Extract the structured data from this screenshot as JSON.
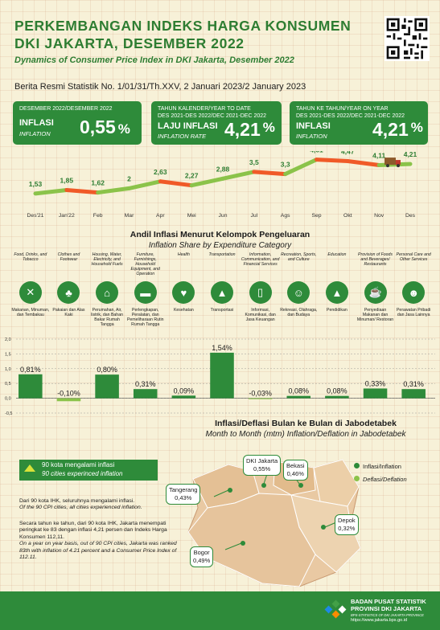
{
  "header": {
    "title_line1": "PERKEMBANGAN INDEKS HARGA KONSUMEN",
    "title_line2": "DKI JAKARTA, DESEMBER 2022",
    "subtitle": "Dynamics of Consumer Price Index in DKI Jakarta, Desember 2022",
    "brs": "Berita Resmi Statistik No. 1/01/31/Th.XXV, 2 Januari 2023/2 January 2023"
  },
  "cards": [
    {
      "header": "DESEMBER 2022/DESEMBER 2022",
      "label": "INFLASI",
      "label_en": "INFLATION",
      "value": "0,55",
      "unit": "%"
    },
    {
      "header": "TAHUN KALENDER/YEAR TO DATE",
      "header2": "DES 2021-DES 2022/DEC 2021-DEC 2022",
      "label": "LAJU INFLASI",
      "label_en": "INFLATION RATE",
      "value": "4,21",
      "unit": "%"
    },
    {
      "header": "TAHUN KE TAHUN/YEAR ON YEAR",
      "header2": "DES 2021-DES 2022/DEC 2021-DEC 2022",
      "label": "INFLASI",
      "label_en": "INFLATION",
      "value": "4,21",
      "unit": "%"
    }
  ],
  "chart_data": [
    {
      "type": "line",
      "categories": [
        "Des'21",
        "Jan'22",
        "Feb",
        "Mar",
        "Apr",
        "Mei",
        "Jun",
        "Jul",
        "Ags",
        "Sep",
        "Okt",
        "Nov",
        "Des"
      ],
      "values": [
        1.53,
        1.85,
        1.62,
        2,
        2.63,
        2.27,
        2.88,
        3.5,
        3.3,
        4.61,
        4.47,
        4.11,
        4.21
      ],
      "value_labels": [
        "1,53",
        "1,85",
        "1,62",
        "2",
        "2,63",
        "2,27",
        "2,88",
        "3,5",
        "3,3",
        "4,61",
        "4,47",
        "4,11",
        "4,21"
      ],
      "colors": {
        "up": "#8bc34a",
        "down": "#f05a28"
      }
    },
    {
      "type": "bar",
      "title": "Andil Inflasi Menurut Kelompok Pengeluaran",
      "subtitle": "Inflation Share by Expenditure Category",
      "categories": [
        {
          "en": "Food, Drinks, and Tobacco",
          "id": "Makanan, Minuman, dan Tembakau",
          "icon": "utensils-icon",
          "glyph": "✕"
        },
        {
          "en": "Clothes and Footwear",
          "id": "Pakaian dan Alas Kaki",
          "icon": "dress-icon",
          "glyph": "♣"
        },
        {
          "en": "Housing, Water, Electricity, and Household Fuels",
          "id": "Perumahan, Air, listrik, dan Bahan Bakar Rumah Tangga",
          "icon": "house-icon",
          "glyph": "⌂"
        },
        {
          "en": "Furniture, Furnishings, Household Equipment, and Operation",
          "id": "Perlengkapan, Peralatan, dan Pemeliharaan Rutin Rumah Tangga",
          "icon": "sofa-icon",
          "glyph": "▬"
        },
        {
          "en": "Health",
          "id": "Kesehatan",
          "icon": "heartbeat-icon",
          "glyph": "♥"
        },
        {
          "en": "Transportation",
          "id": "Transportasi",
          "icon": "car-icon",
          "glyph": "▲"
        },
        {
          "en": "Information, Communication, and Financial Services",
          "id": "Informasi, Komunikasi, dan Jasa Keuangan",
          "icon": "phone-icon",
          "glyph": "▯"
        },
        {
          "en": "Recreation, Sports, and Culture",
          "id": "Rekreasi, Olahraga, dan Budaya",
          "icon": "runner-icon",
          "glyph": "☺"
        },
        {
          "en": "Education",
          "id": "Pendidikan",
          "icon": "graduation-cap-icon",
          "glyph": "▲"
        },
        {
          "en": "Provision of Foods and Beverages/ Restaurants",
          "id": "Penyediaan Makanan dan Minuman/ Restoran",
          "icon": "restaurant-icon",
          "glyph": "☕"
        },
        {
          "en": "Personal Care and Other Services",
          "id": "Perawatan Pribadi dan Jasa Lainnya",
          "icon": "person-care-icon",
          "glyph": "☻"
        }
      ],
      "values": [
        0.81,
        -0.1,
        0.8,
        0.31,
        0.09,
        1.54,
        -0.03,
        0.08,
        0.08,
        0.33,
        0.31
      ],
      "value_labels": [
        "0,81%",
        "-0,10%",
        "0,80%",
        "0,31%",
        "0,09%",
        "1,54%",
        "-0,03%",
        "0,08%",
        "0,08%",
        "0,33%",
        "0,31%"
      ],
      "y_ticks": [
        "2,0",
        "1,5",
        "1,0",
        "0,5",
        "0,0",
        "-0,5"
      ],
      "ylim": [
        -0.5,
        2.0
      ],
      "colors": {
        "positive": "#2e8b3a",
        "negative": "#8bc34a"
      }
    }
  ],
  "map": {
    "title": "Inflasi/Deflasi Bulan ke Bulan di Jabodetabek",
    "subtitle": "Month to Month (mtm) Inflation/Deflation in Jabodetabek",
    "badge_line1": "90 kota mengalami inflasi",
    "badge_line2": "90 cities experinced inflation",
    "para1_id": "Dari 90 kota IHK, seluruhnya mengalami inflasi.",
    "para1_en": "Of the 90 CPI cities, all cities experienced inflation.",
    "para2_id": "Secara tahun ke tahun, dari 90 kota IHK, Jakarta menempati peringkat ke 83 dengan inflasi 4,21 persen dan Indeks Harga Konsumen 112,11.",
    "para2_en": "On a year on year basis, out of 90 CPI cities, Jakarta was ranked 83th with inflation of 4.21 percent and a Consumer Price Index of 112.11.",
    "legend_inflation": "Inflasi/Inflation",
    "legend_deflation": "Deflasi/Deflation",
    "cities": [
      {
        "name": "DKI Jakarta",
        "value": "0,55%"
      },
      {
        "name": "Bekasi",
        "value": "0,46%"
      },
      {
        "name": "Tangerang",
        "value": "0,43%"
      },
      {
        "name": "Depok",
        "value": "0,32%"
      },
      {
        "name": "Bogor",
        "value": "0,49%"
      }
    ]
  },
  "footer": {
    "line1": "BADAN PUSAT STATISTIK",
    "line2": "PROVINSI DKI JAKARTA",
    "line3": "BPS-STATISTICS OF DKI JAKARTA PROVINCE",
    "line4": "https://www.jakarta.bps.go.id"
  },
  "colors": {
    "green": "#2e8b3a",
    "light_green": "#8bc34a",
    "orange": "#f05a28",
    "background": "#f7f1d8"
  }
}
